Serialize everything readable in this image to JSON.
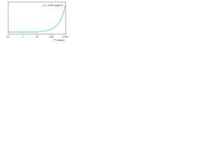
{
  "chart_data": {
    "type": "line",
    "y_label": "ρ × 1000 (kg/m³)",
    "x_label": "P (mbar)",
    "x": [
      0.1,
      1,
      10,
      50,
      100,
      200,
      300,
      400,
      500,
      600,
      700,
      800,
      900,
      1000
    ],
    "values": [
      0.3,
      0.3,
      0.3,
      0.5,
      0.7,
      1.1,
      1.5,
      1.9,
      2.3,
      2.7,
      3.1,
      3.5,
      3.9,
      4.3
    ],
    "color": "#33c4e8",
    "xscale": "log",
    "xlim": [
      0.1,
      1000
    ],
    "xticks": [
      0.1,
      1,
      10,
      100,
      1000
    ],
    "ylim": [
      0,
      4.6
    ]
  }
}
